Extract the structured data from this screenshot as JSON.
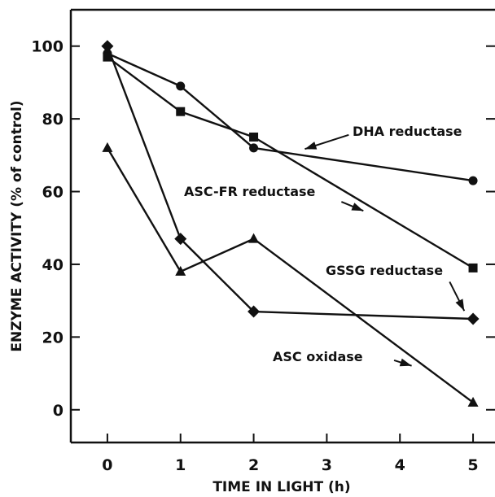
{
  "chart_data": {
    "type": "line",
    "title": "",
    "xlabel": "TIME IN LIGHT (h)",
    "ylabel": "ENZYME ACTIVITY (% of control)",
    "xlim": [
      -0.5,
      5.3
    ],
    "ylim": [
      -9,
      110
    ],
    "xticks": [
      0,
      1,
      2,
      3,
      4,
      5
    ],
    "xtick_labels": [
      "0",
      "1",
      "2",
      "3",
      "4",
      "5"
    ],
    "yticks": [
      0,
      20,
      40,
      60,
      80,
      100
    ],
    "ytick_labels": [
      "0",
      "20",
      "40",
      "60",
      "80",
      "100"
    ],
    "grid": false,
    "legend": "none (direct labels with arrows)",
    "series": [
      {
        "name": "DHA reductase",
        "marker": "circle",
        "x": [
          0,
          1,
          2,
          5
        ],
        "y": [
          98,
          89,
          72,
          63
        ]
      },
      {
        "name": "ASC-FR reductase",
        "marker": "square",
        "x": [
          0,
          1,
          2,
          5
        ],
        "y": [
          97,
          82,
          75,
          39
        ]
      },
      {
        "name": "GSSG reductase",
        "marker": "diamond",
        "x": [
          0,
          1,
          2,
          5
        ],
        "y": [
          100,
          47,
          27,
          25
        ]
      },
      {
        "name": "ASC oxidase",
        "marker": "triangle",
        "x": [
          0,
          1,
          2,
          5
        ],
        "y": [
          72,
          38,
          47,
          2
        ]
      }
    ],
    "annotations": [
      {
        "text": "DHA reductase",
        "arrow_from": [
          3.3,
          75.6
        ],
        "arrow_to": [
          2.7,
          71.7
        ]
      },
      {
        "text": "ASC-FR reductase",
        "arrow_from": [
          3.2,
          57.2
        ],
        "arrow_to": [
          3.5,
          54.7
        ]
      },
      {
        "text": "GSSG reductase",
        "arrow_from": [
          4.68,
          35.2
        ],
        "arrow_to": [
          4.88,
          27.2
        ]
      },
      {
        "text": "ASC oxidase",
        "arrow_from": [
          3.92,
          13.6
        ],
        "arrow_to": [
          4.16,
          12.1
        ]
      }
    ]
  }
}
